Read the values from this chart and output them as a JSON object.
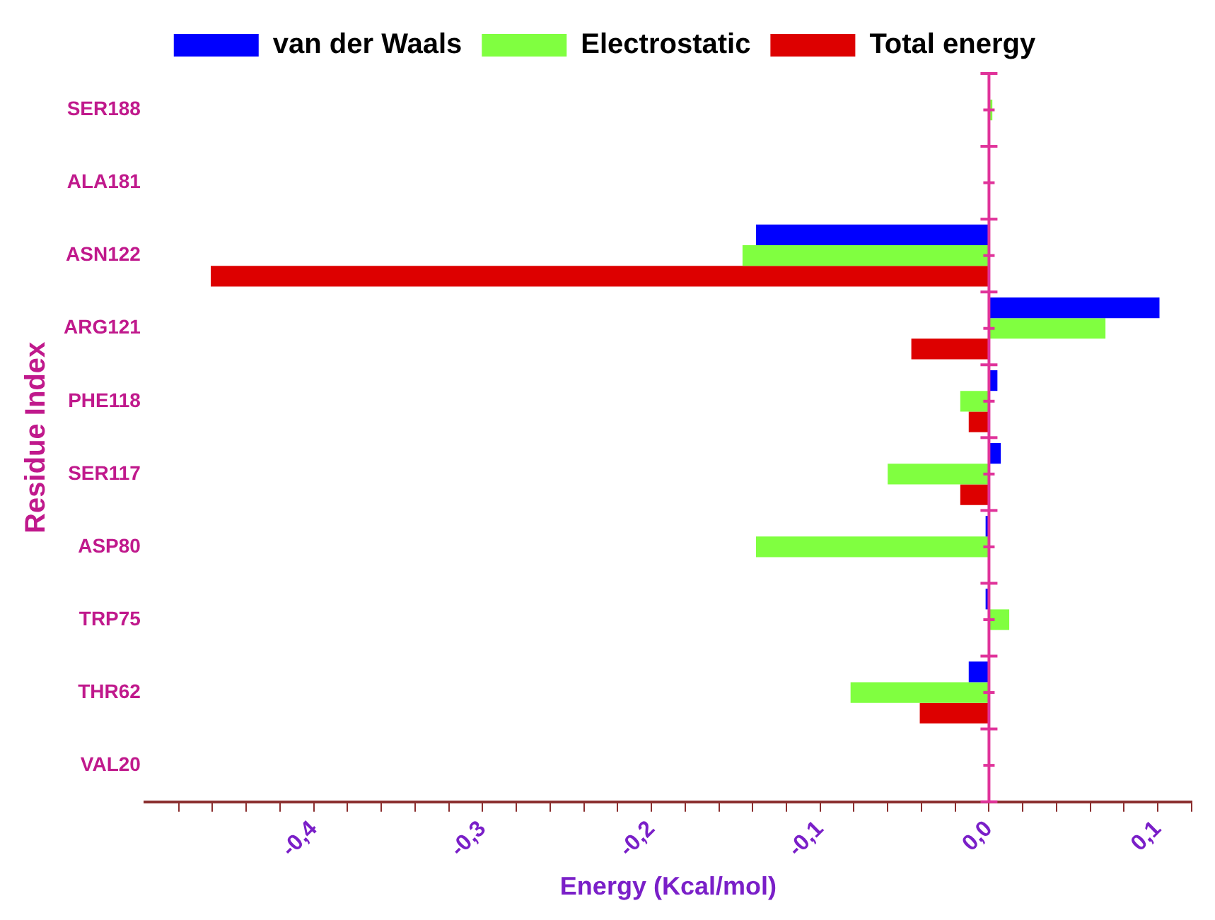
{
  "chart_data": {
    "type": "bar",
    "orientation": "horizontal",
    "categories": [
      "SER188",
      "ALA181",
      "ASN122",
      "ARG121",
      "PHE118",
      "SER117",
      "ASP80",
      "TRP75",
      "THR62",
      "VAL20"
    ],
    "series": [
      {
        "name": "van der Waals",
        "color": "#0000ff",
        "values": [
          null,
          null,
          -0.138,
          0.101,
          0.005,
          0.007,
          -0.002,
          -0.002,
          -0.012,
          null
        ]
      },
      {
        "name": "Electrostatic",
        "color": "#80ff40",
        "values": [
          0.002,
          null,
          -0.146,
          0.069,
          -0.017,
          -0.06,
          -0.138,
          0.012,
          -0.082,
          null
        ]
      },
      {
        "name": "Total energy",
        "color": "#dd0000",
        "values": [
          null,
          null,
          -0.461,
          -0.046,
          -0.012,
          -0.017,
          null,
          null,
          -0.041,
          null
        ]
      }
    ],
    "xlabel": "Energy (Kcal/mol)",
    "ylabel": "Residue Index",
    "xlim": [
      -0.5,
      0.12
    ],
    "xticks": [
      {
        "value": -0.48,
        "label": null
      },
      {
        "value": -0.46,
        "label": null
      },
      {
        "value": -0.44,
        "label": null
      },
      {
        "value": -0.42,
        "label": null
      },
      {
        "value": -0.4,
        "label": "-0,4"
      },
      {
        "value": -0.38,
        "label": null
      },
      {
        "value": -0.36,
        "label": null
      },
      {
        "value": -0.34,
        "label": null
      },
      {
        "value": -0.32,
        "label": null
      },
      {
        "value": -0.3,
        "label": "-0,3"
      },
      {
        "value": -0.28,
        "label": null
      },
      {
        "value": -0.26,
        "label": null
      },
      {
        "value": -0.24,
        "label": null
      },
      {
        "value": -0.22,
        "label": null
      },
      {
        "value": -0.2,
        "label": "-0,2"
      },
      {
        "value": -0.18,
        "label": null
      },
      {
        "value": -0.16,
        "label": null
      },
      {
        "value": -0.14,
        "label": null
      },
      {
        "value": -0.12,
        "label": null
      },
      {
        "value": -0.1,
        "label": "-0,1"
      },
      {
        "value": -0.08,
        "label": null
      },
      {
        "value": -0.06,
        "label": null
      },
      {
        "value": -0.04,
        "label": null
      },
      {
        "value": -0.02,
        "label": null
      },
      {
        "value": 0,
        "label": "0,0"
      },
      {
        "value": 0.02,
        "label": null
      },
      {
        "value": 0.04,
        "label": null
      },
      {
        "value": 0.06,
        "label": null
      },
      {
        "value": 0.08,
        "label": null
      },
      {
        "value": 0.1,
        "label": "0,1"
      },
      {
        "value": 0.12,
        "label": null
      }
    ],
    "ref_lines": [
      {
        "axis": "x",
        "value": 0,
        "color": "#e0339a"
      }
    ],
    "grid": false,
    "legend": "top"
  }
}
